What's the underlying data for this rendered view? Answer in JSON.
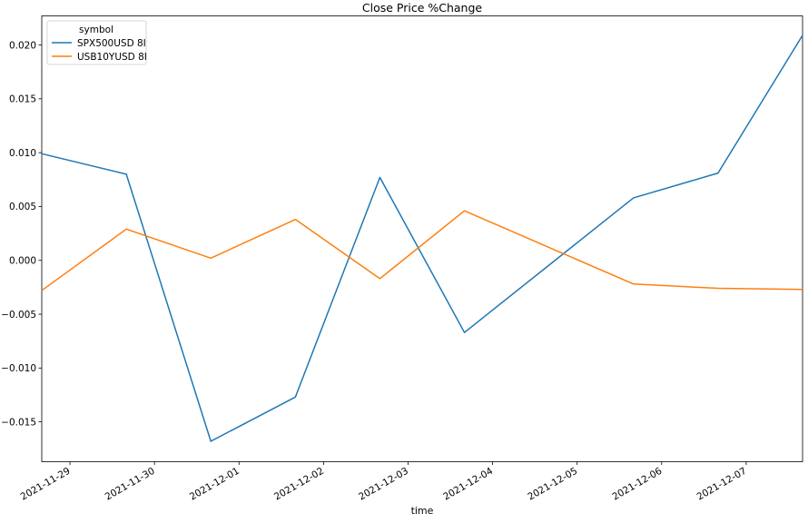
{
  "chart_data": {
    "type": "line",
    "title": "Close Price %Change",
    "xlabel": "time",
    "ylabel": "",
    "x": [
      "2021-11-28T16:00",
      "2021-11-29T16:00",
      "2021-11-30T16:00",
      "2021-12-01T16:00",
      "2021-12-02T16:00",
      "2021-12-03T16:00",
      "2021-12-05T16:00",
      "2021-12-06T16:00",
      "2021-12-07T16:00"
    ],
    "series": [
      {
        "name": "SPX500USD 8I",
        "color": "#1f77b4",
        "values": [
          0.0099,
          0.008,
          -0.0168,
          -0.0127,
          0.0077,
          -0.0067,
          0.0058,
          0.0081,
          0.0209
        ]
      },
      {
        "name": "USB10YUSD 8I",
        "color": "#ff7f0e",
        "values": [
          -0.0028,
          0.0029,
          0.0002,
          0.0038,
          -0.0017,
          0.0046,
          -0.0022,
          -0.0026,
          -0.0027
        ]
      }
    ],
    "xlim": [
      "2021-11-28T16:00",
      "2021-12-07T16:00"
    ],
    "ylim": [
      -0.0187,
      0.0227
    ],
    "yticks": [
      "0.020",
      "0.015",
      "0.010",
      "0.005",
      "0.000",
      "−0.005",
      "−0.010",
      "−0.015"
    ],
    "ytick_values": [
      0.02,
      0.015,
      0.01,
      0.005,
      0.0,
      -0.005,
      -0.01,
      -0.015
    ],
    "xticks": [
      "2021-11-29",
      "2021-11-30",
      "2021-12-01",
      "2021-12-02",
      "2021-12-03",
      "2021-12-04",
      "2021-12-05",
      "2021-12-06",
      "2021-12-07"
    ],
    "legend": {
      "title": "symbol",
      "location": "upper-left"
    },
    "grid": false
  }
}
